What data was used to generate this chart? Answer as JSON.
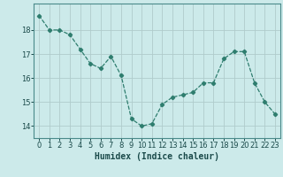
{
  "x": [
    0,
    1,
    2,
    3,
    4,
    5,
    6,
    7,
    8,
    9,
    10,
    11,
    12,
    13,
    14,
    15,
    16,
    17,
    18,
    19,
    20,
    21,
    22,
    23
  ],
  "y": [
    18.6,
    18.0,
    18.0,
    17.8,
    17.2,
    16.6,
    16.4,
    16.9,
    16.1,
    14.3,
    14.0,
    14.1,
    14.9,
    15.2,
    15.3,
    15.4,
    15.8,
    15.8,
    16.8,
    17.1,
    17.1,
    15.8,
    15.0,
    14.5
  ],
  "line_color": "#2e7d6e",
  "marker": "D",
  "marker_size": 2.2,
  "bg_color": "#cceaea",
  "grid_color": "#b0cccc",
  "xlabel": "Humidex (Indice chaleur)",
  "xlabel_fontsize": 7,
  "tick_fontsize": 6,
  "ylim": [
    13.5,
    19.1
  ],
  "xlim": [
    -0.5,
    23.5
  ],
  "yticks": [
    14,
    15,
    16,
    17,
    18
  ],
  "xticks": [
    0,
    1,
    2,
    3,
    4,
    5,
    6,
    7,
    8,
    9,
    10,
    11,
    12,
    13,
    14,
    15,
    16,
    17,
    18,
    19,
    20,
    21,
    22,
    23
  ],
  "spine_color": "#4a8a8a",
  "linewidth": 0.9
}
